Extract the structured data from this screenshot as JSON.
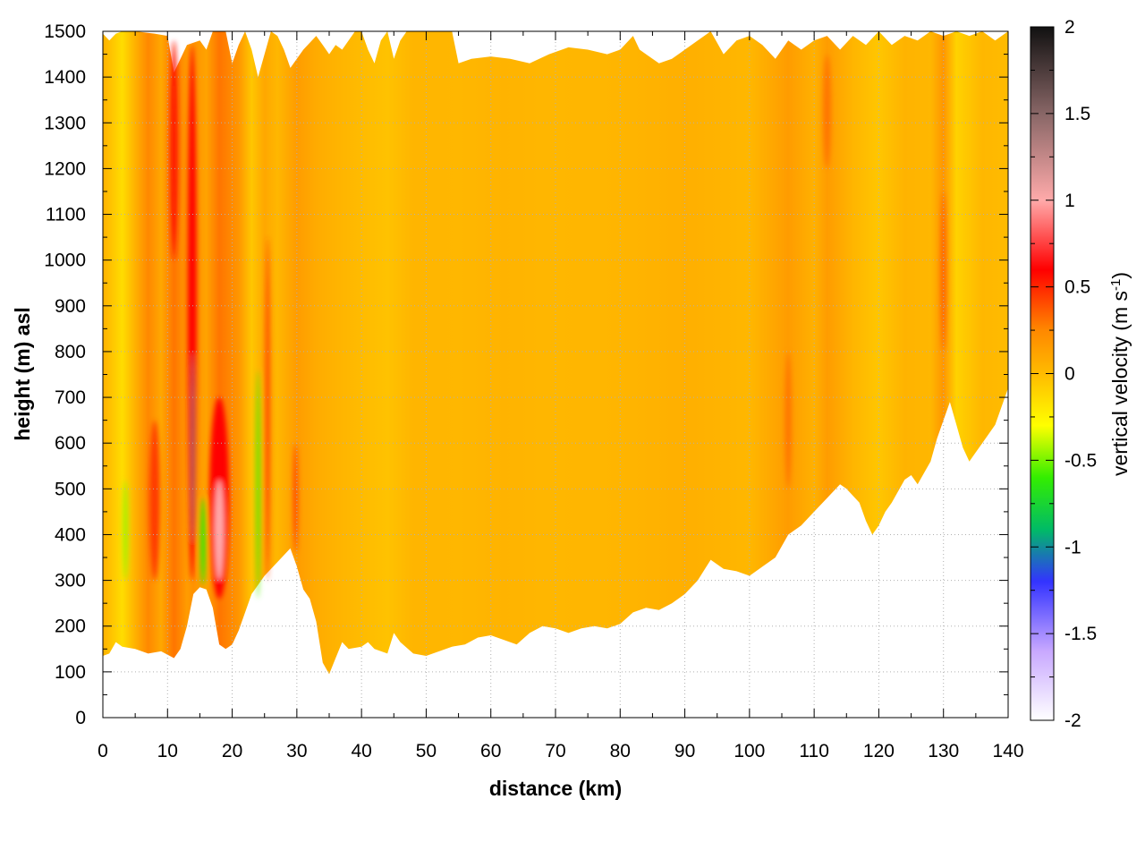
{
  "chart_data": {
    "type": "heatmap",
    "xlabel": "distance (km)",
    "ylabel": "height (m) asl",
    "xlim": [
      0,
      140
    ],
    "ylim": [
      0,
      1500
    ],
    "x_ticks": [
      0,
      10,
      20,
      30,
      40,
      50,
      60,
      70,
      80,
      90,
      100,
      110,
      120,
      130,
      140
    ],
    "y_ticks": [
      0,
      100,
      200,
      300,
      400,
      500,
      600,
      700,
      800,
      900,
      1000,
      1100,
      1200,
      1300,
      1400,
      1500
    ],
    "colorbar": {
      "label_prefix": "vertical velocity (m s",
      "label_exp": "-1",
      "label_suffix": ")",
      "range": [
        -2,
        2
      ],
      "ticks": [
        -2,
        -1.5,
        -1,
        -0.5,
        0,
        0.5,
        1,
        1.5,
        2
      ],
      "stops": [
        {
          "v": -2.0,
          "color": "#ffffff"
        },
        {
          "v": -1.6,
          "color": "#c8a8ff"
        },
        {
          "v": -1.2,
          "color": "#3333ff"
        },
        {
          "v": -0.9,
          "color": "#00bb66"
        },
        {
          "v": -0.6,
          "color": "#33ee00"
        },
        {
          "v": -0.3,
          "color": "#ffff00"
        },
        {
          "v": 0.0,
          "color": "#ffbb00"
        },
        {
          "v": 0.25,
          "color": "#ff8800"
        },
        {
          "v": 0.6,
          "color": "#ff0000"
        },
        {
          "v": 1.0,
          "color": "#ffaaaa"
        },
        {
          "v": 1.5,
          "color": "#886666"
        },
        {
          "v": 2.0,
          "color": "#111111"
        }
      ]
    },
    "lower_boundary": [
      [
        0,
        135
      ],
      [
        1,
        140
      ],
      [
        2,
        165
      ],
      [
        3,
        155
      ],
      [
        5,
        150
      ],
      [
        7,
        140
      ],
      [
        9,
        145
      ],
      [
        11,
        130
      ],
      [
        12,
        150
      ],
      [
        13,
        200
      ],
      [
        14,
        270
      ],
      [
        15,
        285
      ],
      [
        16,
        280
      ],
      [
        17,
        240
      ],
      [
        18,
        160
      ],
      [
        19,
        150
      ],
      [
        20,
        160
      ],
      [
        21,
        190
      ],
      [
        23,
        270
      ],
      [
        25,
        310
      ],
      [
        27,
        340
      ],
      [
        29,
        370
      ],
      [
        30,
        330
      ],
      [
        31,
        280
      ],
      [
        32,
        260
      ],
      [
        33,
        210
      ],
      [
        34,
        120
      ],
      [
        35,
        95
      ],
      [
        36,
        130
      ],
      [
        37,
        165
      ],
      [
        38,
        150
      ],
      [
        40,
        155
      ],
      [
        41,
        165
      ],
      [
        42,
        150
      ],
      [
        44,
        140
      ],
      [
        45,
        185
      ],
      [
        46,
        165
      ],
      [
        48,
        140
      ],
      [
        50,
        135
      ],
      [
        52,
        145
      ],
      [
        54,
        155
      ],
      [
        56,
        160
      ],
      [
        58,
        175
      ],
      [
        60,
        180
      ],
      [
        62,
        170
      ],
      [
        64,
        160
      ],
      [
        66,
        185
      ],
      [
        68,
        200
      ],
      [
        70,
        195
      ],
      [
        72,
        185
      ],
      [
        74,
        195
      ],
      [
        76,
        200
      ],
      [
        78,
        195
      ],
      [
        80,
        205
      ],
      [
        82,
        230
      ],
      [
        84,
        240
      ],
      [
        86,
        235
      ],
      [
        88,
        250
      ],
      [
        90,
        270
      ],
      [
        92,
        300
      ],
      [
        94,
        345
      ],
      [
        96,
        325
      ],
      [
        98,
        320
      ],
      [
        100,
        310
      ],
      [
        102,
        330
      ],
      [
        104,
        350
      ],
      [
        106,
        400
      ],
      [
        108,
        420
      ],
      [
        110,
        450
      ],
      [
        112,
        480
      ],
      [
        114,
        510
      ],
      [
        115,
        500
      ],
      [
        117,
        470
      ],
      [
        118,
        430
      ],
      [
        119,
        400
      ],
      [
        120,
        420
      ],
      [
        121,
        450
      ],
      [
        122,
        470
      ],
      [
        124,
        520
      ],
      [
        125,
        530
      ],
      [
        126,
        510
      ],
      [
        128,
        560
      ],
      [
        129,
        610
      ],
      [
        130,
        650
      ],
      [
        131,
        690
      ],
      [
        132,
        640
      ],
      [
        133,
        590
      ],
      [
        134,
        560
      ],
      [
        135,
        580
      ],
      [
        136,
        600
      ],
      [
        138,
        640
      ],
      [
        140,
        720
      ]
    ],
    "upper_boundary": [
      [
        0,
        1495
      ],
      [
        1,
        1480
      ],
      [
        2,
        1495
      ],
      [
        3,
        1500
      ],
      [
        5,
        1500
      ],
      [
        8,
        1495
      ],
      [
        10,
        1490
      ],
      [
        11,
        1410
      ],
      [
        12,
        1440
      ],
      [
        13,
        1470
      ],
      [
        15,
        1480
      ],
      [
        16,
        1460
      ],
      [
        17,
        1500
      ],
      [
        19,
        1500
      ],
      [
        20,
        1430
      ],
      [
        21,
        1470
      ],
      [
        22,
        1500
      ],
      [
        23,
        1460
      ],
      [
        24,
        1400
      ],
      [
        25,
        1450
      ],
      [
        26,
        1500
      ],
      [
        27,
        1490
      ],
      [
        28,
        1460
      ],
      [
        29,
        1420
      ],
      [
        31,
        1460
      ],
      [
        33,
        1490
      ],
      [
        34,
        1470
      ],
      [
        35,
        1450
      ],
      [
        36,
        1470
      ],
      [
        37,
        1460
      ],
      [
        38,
        1480
      ],
      [
        39,
        1500
      ],
      [
        40,
        1500
      ],
      [
        41,
        1460
      ],
      [
        42,
        1430
      ],
      [
        43,
        1480
      ],
      [
        44,
        1500
      ],
      [
        45,
        1440
      ],
      [
        46,
        1480
      ],
      [
        47,
        1500
      ],
      [
        54,
        1500
      ],
      [
        55,
        1430
      ],
      [
        57,
        1440
      ],
      [
        60,
        1445
      ],
      [
        63,
        1440
      ],
      [
        66,
        1430
      ],
      [
        69,
        1450
      ],
      [
        72,
        1465
      ],
      [
        75,
        1460
      ],
      [
        78,
        1450
      ],
      [
        80,
        1460
      ],
      [
        82,
        1490
      ],
      [
        83,
        1460
      ],
      [
        84,
        1450
      ],
      [
        86,
        1430
      ],
      [
        88,
        1440
      ],
      [
        90,
        1460
      ],
      [
        92,
        1480
      ],
      [
        94,
        1500
      ],
      [
        96,
        1450
      ],
      [
        98,
        1480
      ],
      [
        100,
        1490
      ],
      [
        102,
        1470
      ],
      [
        104,
        1440
      ],
      [
        106,
        1480
      ],
      [
        108,
        1460
      ],
      [
        110,
        1480
      ],
      [
        112,
        1490
      ],
      [
        114,
        1460
      ],
      [
        116,
        1490
      ],
      [
        118,
        1470
      ],
      [
        120,
        1500
      ],
      [
        122,
        1470
      ],
      [
        124,
        1490
      ],
      [
        126,
        1480
      ],
      [
        128,
        1500
      ],
      [
        130,
        1490
      ],
      [
        132,
        1500
      ],
      [
        134,
        1490
      ],
      [
        136,
        1500
      ],
      [
        138,
        1480
      ],
      [
        140,
        1500
      ]
    ]
  }
}
